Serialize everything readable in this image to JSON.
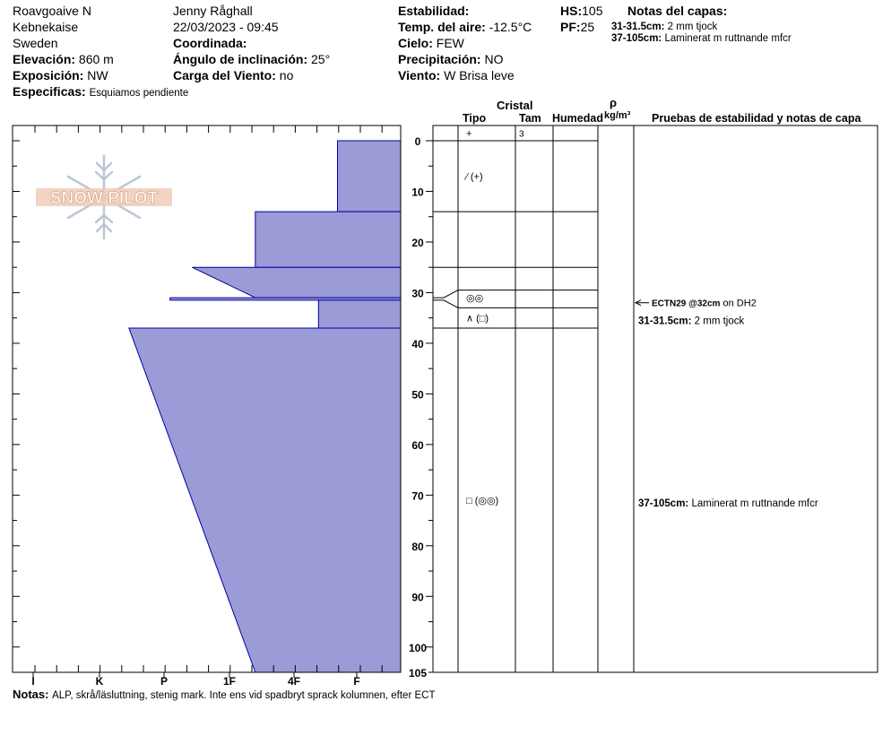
{
  "header": {
    "location": "Roavgoaive N",
    "region": "Kebnekaise",
    "country": "Sweden",
    "elevation_label": "Elevación:",
    "elevation": "860 m",
    "aspect_label": "Exposición:",
    "aspect": "NW",
    "specifics_label": "Especificas:",
    "specifics": "Esquiamos pendiente",
    "observer": "Jenny Råghall",
    "datetime": "22/03/2023 - 09:45",
    "coord_label": "Coordinada:",
    "coord": "",
    "slope_label": "Ángulo de inclinación:",
    "slope": "25°",
    "wind_load_label": "Carga del Viento:",
    "wind_load": "no",
    "stability_label": "Estabilidad:",
    "stability": "",
    "air_temp_label": "Temp. del aire:",
    "air_temp": "-12.5°C",
    "sky_label": "Cielo:",
    "sky": "FEW",
    "precip_label": "Precipitación:",
    "precip": "NO",
    "wind_label": "Viento:",
    "wind": "W Brisa leve",
    "hs_label": "HS:",
    "hs": "105",
    "pf_label": "PF:",
    "pf": "25",
    "layer_notes_label": "Notas del capas:",
    "layer_notes": [
      {
        "range": "31-31.5cm:",
        "text": "2 mm tjock"
      },
      {
        "range": "37-105cm:",
        "text": "Laminerat m ruttnande mfcr"
      }
    ]
  },
  "logo_text": "SNOW PILOT",
  "columns": {
    "crystal": "Cristal",
    "type": "Tipo",
    "size": "Tam",
    "moisture": "Humedad",
    "density_symbol": "ρ",
    "density_unit": "kg/m³",
    "tests": "Pruebas de estabilidad y notas de capa"
  },
  "notes_label": "Notas:",
  "notes": "ALP, skrå/läsluttning, stenig mark. Inte ens vid spadbryt sprack kolumnen, efter ECT",
  "chart_data": {
    "type": "area",
    "title": "",
    "xlabel": "",
    "ylabel": "",
    "x_ticks": [
      "I",
      "K",
      "P",
      "1F",
      "4F",
      "F"
    ],
    "y_ticks": [
      0,
      10,
      20,
      30,
      40,
      50,
      60,
      70,
      80,
      90,
      100,
      105
    ],
    "ylim": [
      0,
      105
    ],
    "hardness_index_scale": {
      "F": 1,
      "4F": 2,
      "1F": 3,
      "P": 4,
      "K": 5,
      "I": 6
    },
    "hardness_profile": [
      {
        "depth_top": 0,
        "depth_bottom": 14,
        "hardness_top": 1.7,
        "hardness_bottom": 1.7
      },
      {
        "depth_top": 14,
        "depth_bottom": 25,
        "hardness_top": 3.0,
        "hardness_bottom": 3.0
      },
      {
        "depth_top": 25,
        "depth_bottom": 31,
        "hardness_top": 4.0,
        "hardness_bottom": 3.0
      },
      {
        "depth_top": 31,
        "depth_bottom": 31.5,
        "hardness_top": 4.35,
        "hardness_bottom": 4.35
      },
      {
        "depth_top": 31.5,
        "depth_bottom": 37,
        "hardness_top": 2.0,
        "hardness_bottom": 2.0
      },
      {
        "depth_top": 37,
        "depth_bottom": 105,
        "hardness_top": 5.0,
        "hardness_bottom": 3.0
      }
    ],
    "layer_boundaries": [
      0,
      14,
      25,
      29.5,
      33,
      37
    ],
    "thin_layer_lines": [
      31,
      31.5
    ],
    "crystals": [
      {
        "depth": -1.5,
        "symbol": "+",
        "size": "3"
      },
      {
        "depth": 7,
        "symbol": "⁄ (+)",
        "size": ""
      },
      {
        "depth": 31,
        "symbol": "◎◎",
        "size": ""
      },
      {
        "depth": 35,
        "symbol": "∧ (□)",
        "size": ""
      },
      {
        "depth": 71,
        "symbol": "□ (◎◎)",
        "size": ""
      }
    ],
    "stability_tests": [
      {
        "depth": 32,
        "code": "ECTN29 @32cm",
        "text": "on DH2"
      }
    ],
    "layer_note_labels": [
      {
        "depth": 35.5,
        "range": "31-31.5cm:",
        "text": "2 mm tjock"
      },
      {
        "depth": 71.5,
        "range": "37-105cm:",
        "text": "Laminerat m ruttnande mfcr"
      }
    ]
  },
  "colors": {
    "profile_fill": "#9b9bd7",
    "profile_stroke": "#0000a0"
  }
}
